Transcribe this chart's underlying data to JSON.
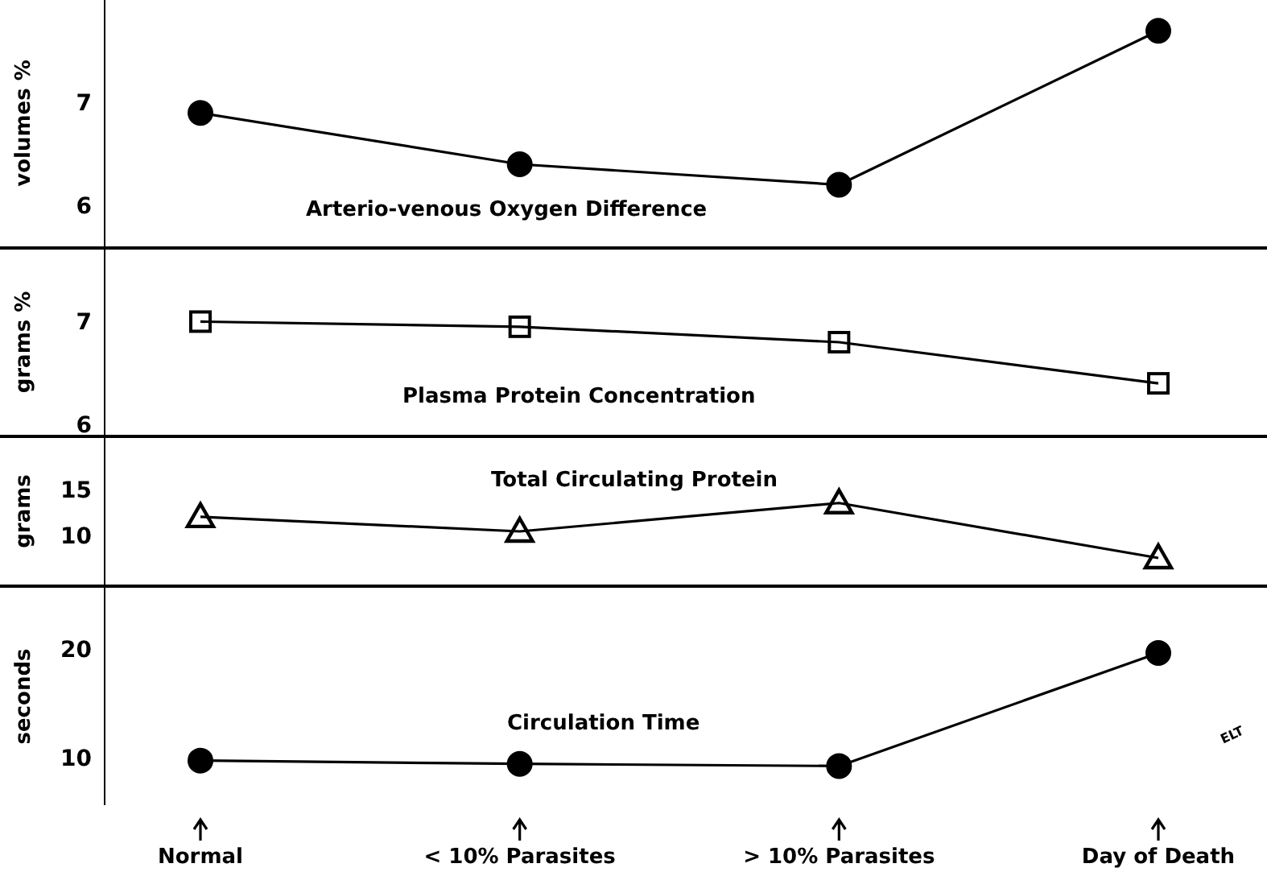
{
  "chart_data": [
    {
      "type": "line",
      "title": "Arterio-venous Oxygen Difference",
      "ylabel": "volumes %",
      "categories": [
        null,
        null,
        null,
        null
      ],
      "series": [
        {
          "color": "#000000",
          "values": [
            6.9,
            6.4,
            6.2,
            7.7
          ]
        }
      ],
      "ylim": [
        5.6,
        8.0
      ],
      "yticks": [
        6,
        7
      ],
      "marker": "circle",
      "tick_labels": "y"
    },
    {
      "type": "line",
      "title": "Plasma Protein Concentration",
      "ylabel": "grams %",
      "categories": [
        null,
        null,
        null,
        null
      ],
      "series": [
        {
          "color": "#000000",
          "values": [
            7.0,
            6.95,
            6.8,
            6.4
          ]
        }
      ],
      "ylim": [
        5.9,
        7.7
      ],
      "yticks": [
        6,
        7
      ],
      "marker": "square",
      "tick_labels": "y"
    },
    {
      "type": "line",
      "title": "Total Circulating Protein",
      "ylabel": "grams",
      "categories": [
        null,
        null,
        null,
        null
      ],
      "series": [
        {
          "color": "#000000",
          "values": [
            12.0,
            10.4,
            13.5,
            7.5
          ]
        }
      ],
      "ylim": [
        4.6,
        20.6
      ],
      "yticks": [
        10,
        15
      ],
      "marker": "triangle",
      "tick_labels": "y"
    },
    {
      "type": "line",
      "title": "Circulation Time",
      "ylabel": "seconds",
      "categories": [
        "Normal",
        "< 10% Parasites",
        "> 10% Parasites",
        "Day of Death"
      ],
      "series": [
        {
          "color": "#000000",
          "values": [
            9.7,
            9.4,
            9.2,
            19.6
          ]
        }
      ],
      "ylim": [
        5.6,
        25.6
      ],
      "yticks": [
        10,
        20
      ],
      "marker": "circle",
      "annotations": [
        "ELT"
      ]
    }
  ]
}
